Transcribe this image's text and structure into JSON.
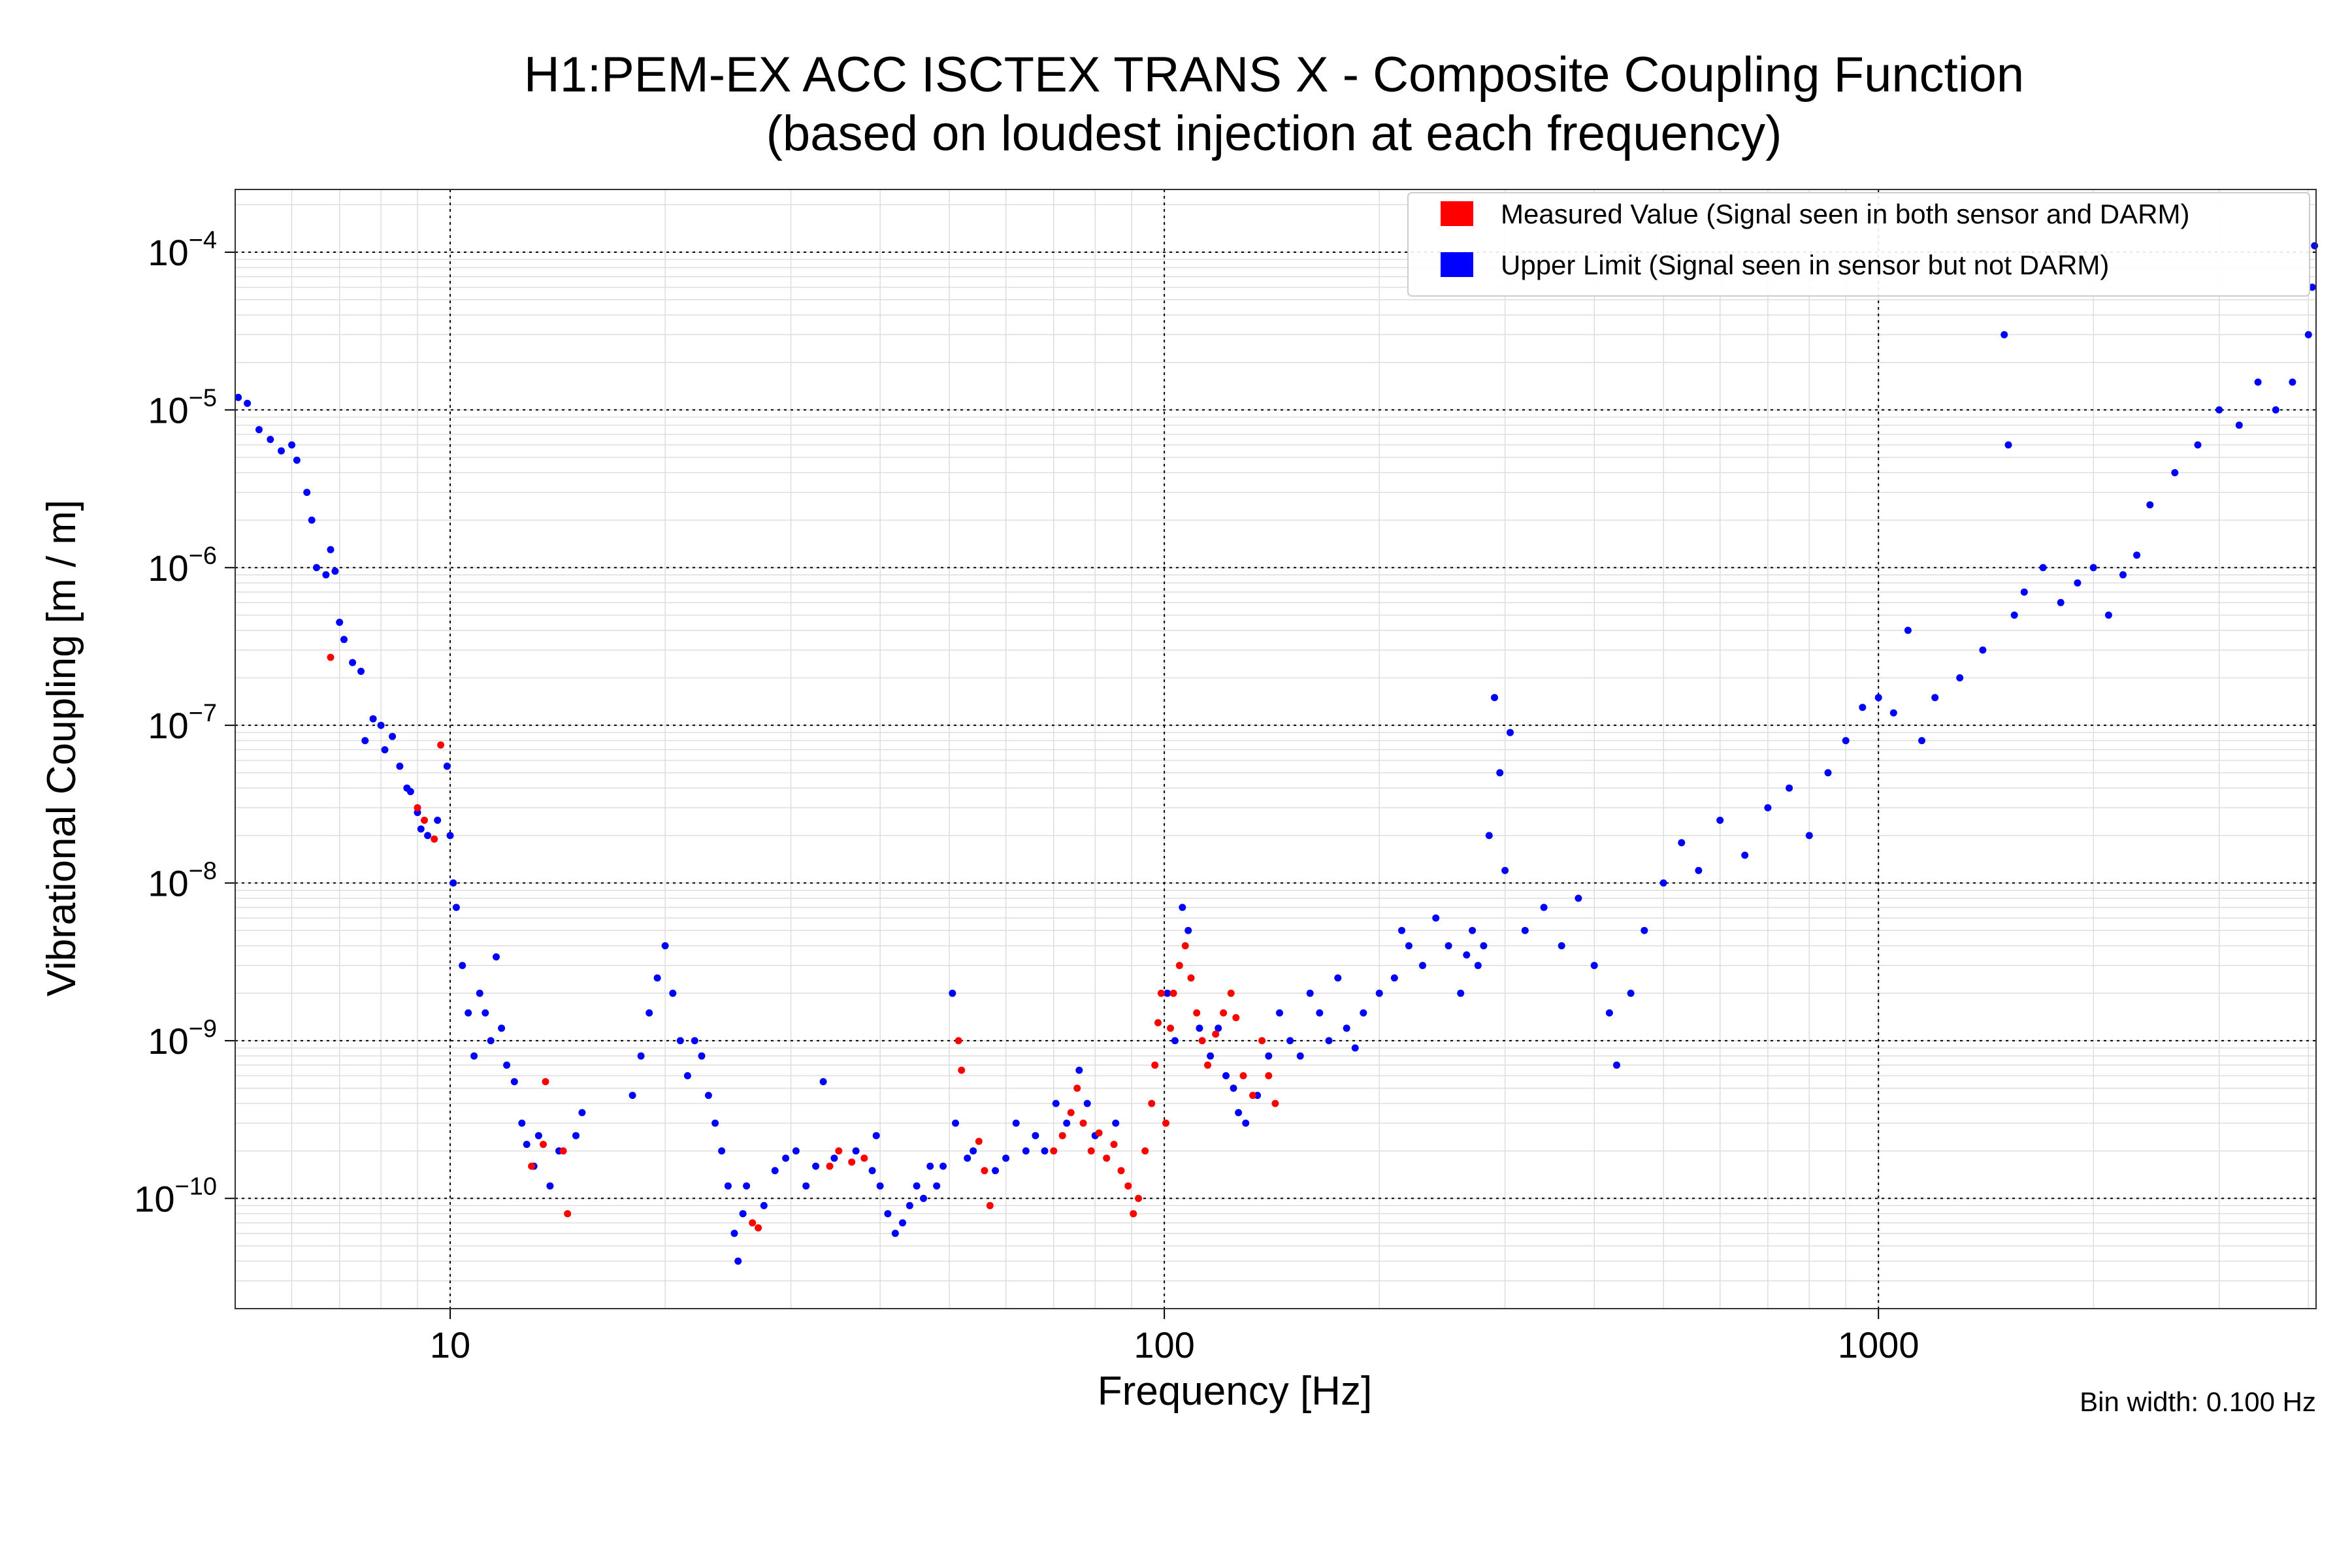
{
  "chart_data": {
    "type": "scatter",
    "title": [
      "H1:PEM-EX ACC ISCTEX TRANS X - Composite Coupling Function",
      "(based on loudest injection at each frequency)"
    ],
    "xlabel": "Frequency [Hz]",
    "ylabel": "Vibrational Coupling [m / m]",
    "xscale": "log",
    "yscale": "log",
    "xlim": [
      5,
      4100
    ],
    "ylim": [
      2e-11,
      0.00025
    ],
    "x_ticks": [
      {
        "value": 10,
        "label": "10"
      },
      {
        "value": 100,
        "label": "100"
      },
      {
        "value": 1000,
        "label": "1000"
      }
    ],
    "y_ticks": [
      {
        "value": 1e-10,
        "base": "10",
        "exp": "−10"
      },
      {
        "value": 1e-09,
        "base": "10",
        "exp": "−9"
      },
      {
        "value": 1e-08,
        "base": "10",
        "exp": "−8"
      },
      {
        "value": 1e-07,
        "base": "10",
        "exp": "−7"
      },
      {
        "value": 1e-06,
        "base": "10",
        "exp": "−6"
      },
      {
        "value": 1e-05,
        "base": "10",
        "exp": "−5"
      },
      {
        "value": 0.0001,
        "base": "10",
        "exp": "−4"
      }
    ],
    "grid": true,
    "legend_position": "top-right",
    "footnote": "Bin width: 0.100 Hz",
    "series": [
      {
        "name": "Measured Value (Signal seen in both sensor and DARM)",
        "color": "#ff0000",
        "points": [
          [
            6.8,
            2.7e-07
          ],
          [
            9.0,
            3e-08
          ],
          [
            9.2,
            2.5e-08
          ],
          [
            9.5,
            1.9e-08
          ],
          [
            9.7,
            7.5e-08
          ],
          [
            13.0,
            1.6e-10
          ],
          [
            13.5,
            2.2e-10
          ],
          [
            13.6,
            5.5e-10
          ],
          [
            14.4,
            2e-10
          ],
          [
            14.6,
            8e-11
          ],
          [
            26.5,
            7e-11
          ],
          [
            27.0,
            6.5e-11
          ],
          [
            34.0,
            1.6e-10
          ],
          [
            35.0,
            2e-10
          ],
          [
            36.5,
            1.7e-10
          ],
          [
            38.0,
            1.8e-10
          ],
          [
            51.5,
            1e-09
          ],
          [
            52.0,
            6.5e-10
          ],
          [
            55.0,
            2.3e-10
          ],
          [
            56.0,
            1.5e-10
          ],
          [
            57.0,
            9e-11
          ],
          [
            70.0,
            2e-10
          ],
          [
            72.0,
            2.5e-10
          ],
          [
            74.0,
            3.5e-10
          ],
          [
            75.5,
            5e-10
          ],
          [
            77.0,
            3e-10
          ],
          [
            79.0,
            2e-10
          ],
          [
            81.0,
            2.6e-10
          ],
          [
            83.0,
            1.8e-10
          ],
          [
            85.0,
            2.2e-10
          ],
          [
            87.0,
            1.5e-10
          ],
          [
            89.0,
            1.2e-10
          ],
          [
            90.5,
            8e-11
          ],
          [
            92.0,
            1e-10
          ],
          [
            94.0,
            2e-10
          ],
          [
            96.0,
            4e-10
          ],
          [
            97.0,
            7e-10
          ],
          [
            98.0,
            1.3e-09
          ],
          [
            99.0,
            2e-09
          ],
          [
            100.5,
            3e-10
          ],
          [
            102.0,
            1.2e-09
          ],
          [
            103.0,
            2e-09
          ],
          [
            105.0,
            3e-09
          ],
          [
            107.0,
            4e-09
          ],
          [
            109.0,
            2.5e-09
          ],
          [
            111.0,
            1.5e-09
          ],
          [
            113.0,
            1e-09
          ],
          [
            115.0,
            7e-10
          ],
          [
            118.0,
            1.1e-09
          ],
          [
            121.0,
            1.5e-09
          ],
          [
            124.0,
            2e-09
          ],
          [
            126.0,
            1.4e-09
          ],
          [
            129.0,
            6e-10
          ],
          [
            133.0,
            4.5e-10
          ],
          [
            137.0,
            1e-09
          ],
          [
            140.0,
            6e-10
          ],
          [
            143.0,
            4e-10
          ]
        ]
      },
      {
        "name": "Upper Limit (Signal seen in sensor but not DARM)",
        "color": "#0000ff",
        "points": [
          [
            5.05,
            1.2e-05
          ],
          [
            5.2,
            1.1e-05
          ],
          [
            5.4,
            7.5e-06
          ],
          [
            5.6,
            6.5e-06
          ],
          [
            5.8,
            5.5e-06
          ],
          [
            6.0,
            6e-06
          ],
          [
            6.1,
            4.8e-06
          ],
          [
            6.3,
            3e-06
          ],
          [
            6.4,
            2e-06
          ],
          [
            6.5,
            1e-06
          ],
          [
            6.7,
            9e-07
          ],
          [
            6.8,
            1.3e-06
          ],
          [
            6.9,
            9.5e-07
          ],
          [
            7.0,
            4.5e-07
          ],
          [
            7.1,
            3.5e-07
          ],
          [
            7.3,
            2.5e-07
          ],
          [
            7.5,
            2.2e-07
          ],
          [
            7.6,
            8e-08
          ],
          [
            7.8,
            1.1e-07
          ],
          [
            8.0,
            1e-07
          ],
          [
            8.1,
            7e-08
          ],
          [
            8.3,
            8.5e-08
          ],
          [
            8.5,
            5.5e-08
          ],
          [
            8.7,
            4e-08
          ],
          [
            8.8,
            3.8e-08
          ],
          [
            9.0,
            2.8e-08
          ],
          [
            9.1,
            2.2e-08
          ],
          [
            9.3,
            2e-08
          ],
          [
            9.6,
            2.5e-08
          ],
          [
            9.9,
            5.5e-08
          ],
          [
            10.0,
            2e-08
          ],
          [
            10.1,
            1e-08
          ],
          [
            10.2,
            7e-09
          ],
          [
            10.4,
            3e-09
          ],
          [
            10.6,
            1.5e-09
          ],
          [
            10.8,
            8e-10
          ],
          [
            11.0,
            2e-09
          ],
          [
            11.2,
            1.5e-09
          ],
          [
            11.4,
            1e-09
          ],
          [
            11.6,
            3.4e-09
          ],
          [
            11.8,
            1.2e-09
          ],
          [
            12.0,
            7e-10
          ],
          [
            12.3,
            5.5e-10
          ],
          [
            12.6,
            3e-10
          ],
          [
            12.8,
            2.2e-10
          ],
          [
            13.1,
            1.6e-10
          ],
          [
            13.3,
            2.5e-10
          ],
          [
            13.8,
            1.2e-10
          ],
          [
            14.2,
            2e-10
          ],
          [
            15.0,
            2.5e-10
          ],
          [
            15.3,
            3.5e-10
          ],
          [
            18.0,
            4.5e-10
          ],
          [
            18.5,
            8e-10
          ],
          [
            19.0,
            1.5e-09
          ],
          [
            19.5,
            2.5e-09
          ],
          [
            20.0,
            4e-09
          ],
          [
            20.5,
            2e-09
          ],
          [
            21.0,
            1e-09
          ],
          [
            21.5,
            6e-10
          ],
          [
            22.0,
            1e-09
          ],
          [
            22.5,
            8e-10
          ],
          [
            23.0,
            4.5e-10
          ],
          [
            23.5,
            3e-10
          ],
          [
            24.0,
            2e-10
          ],
          [
            24.5,
            1.2e-10
          ],
          [
            25.0,
            6e-11
          ],
          [
            25.3,
            4e-11
          ],
          [
            25.7,
            8e-11
          ],
          [
            26.0,
            1.2e-10
          ],
          [
            27.5,
            9e-11
          ],
          [
            28.5,
            1.5e-10
          ],
          [
            29.5,
            1.8e-10
          ],
          [
            30.5,
            2e-10
          ],
          [
            31.5,
            1.2e-10
          ],
          [
            32.5,
            1.6e-10
          ],
          [
            33.3,
            5.5e-10
          ],
          [
            34.5,
            1.8e-10
          ],
          [
            37.0,
            2e-10
          ],
          [
            39.0,
            1.5e-10
          ],
          [
            39.5,
            2.5e-10
          ],
          [
            40.0,
            1.2e-10
          ],
          [
            41.0,
            8e-11
          ],
          [
            42.0,
            6e-11
          ],
          [
            43.0,
            7e-11
          ],
          [
            44.0,
            9e-11
          ],
          [
            45.0,
            1.2e-10
          ],
          [
            46.0,
            1e-10
          ],
          [
            47.0,
            1.6e-10
          ],
          [
            48.0,
            1.2e-10
          ],
          [
            49.0,
            1.6e-10
          ],
          [
            50.5,
            2e-09
          ],
          [
            51.0,
            3e-10
          ],
          [
            53.0,
            1.8e-10
          ],
          [
            54.0,
            2e-10
          ],
          [
            58.0,
            1.5e-10
          ],
          [
            60.0,
            1.8e-10
          ],
          [
            62.0,
            3e-10
          ],
          [
            64.0,
            2e-10
          ],
          [
            66.0,
            2.5e-10
          ],
          [
            68.0,
            2e-10
          ],
          [
            70.5,
            4e-10
          ],
          [
            73.0,
            3e-10
          ],
          [
            76.0,
            6.5e-10
          ],
          [
            78.0,
            4e-10
          ],
          [
            80.0,
            2.5e-10
          ],
          [
            85.5,
            3e-10
          ],
          [
            101.0,
            2e-09
          ],
          [
            103.5,
            1e-09
          ],
          [
            106.0,
            7e-09
          ],
          [
            108.0,
            5e-09
          ],
          [
            112.0,
            1.2e-09
          ],
          [
            116.0,
            8e-10
          ],
          [
            119.0,
            1.2e-09
          ],
          [
            122.0,
            6e-10
          ],
          [
            125.0,
            5e-10
          ],
          [
            127.0,
            3.5e-10
          ],
          [
            130.0,
            3e-10
          ],
          [
            135.0,
            4.5e-10
          ],
          [
            140.0,
            8e-10
          ],
          [
            145.0,
            1.5e-09
          ],
          [
            150.0,
            1e-09
          ],
          [
            155.0,
            8e-10
          ],
          [
            160.0,
            2e-09
          ],
          [
            165.0,
            1.5e-09
          ],
          [
            170.0,
            1e-09
          ],
          [
            175.0,
            2.5e-09
          ],
          [
            180.0,
            1.2e-09
          ],
          [
            185.0,
            9e-10
          ],
          [
            190.0,
            1.5e-09
          ],
          [
            200.0,
            2e-09
          ],
          [
            210.0,
            2.5e-09
          ],
          [
            215.0,
            5e-09
          ],
          [
            220.0,
            4e-09
          ],
          [
            230.0,
            3e-09
          ],
          [
            240.0,
            6e-09
          ],
          [
            250.0,
            4e-09
          ],
          [
            260.0,
            2e-09
          ],
          [
            265.0,
            3.5e-09
          ],
          [
            270.0,
            5e-09
          ],
          [
            275.0,
            3e-09
          ],
          [
            280.0,
            4e-09
          ],
          [
            285.0,
            2e-08
          ],
          [
            290.0,
            1.5e-07
          ],
          [
            295.0,
            5e-08
          ],
          [
            300.0,
            1.2e-08
          ],
          [
            305.0,
            9e-08
          ],
          [
            320.0,
            5e-09
          ],
          [
            340.0,
            7e-09
          ],
          [
            360.0,
            4e-09
          ],
          [
            380.0,
            8e-09
          ],
          [
            400.0,
            3e-09
          ],
          [
            420.0,
            1.5e-09
          ],
          [
            430.0,
            7e-10
          ],
          [
            450.0,
            2e-09
          ],
          [
            470.0,
            5e-09
          ],
          [
            500.0,
            1e-08
          ],
          [
            530.0,
            1.8e-08
          ],
          [
            560.0,
            1.2e-08
          ],
          [
            600.0,
            2.5e-08
          ],
          [
            650.0,
            1.5e-08
          ],
          [
            700.0,
            3e-08
          ],
          [
            750.0,
            4e-08
          ],
          [
            800.0,
            2e-08
          ],
          [
            850.0,
            5e-08
          ],
          [
            900.0,
            8e-08
          ],
          [
            950.0,
            1.3e-07
          ],
          [
            1000.0,
            1.5e-07
          ],
          [
            1050.0,
            1.2e-07
          ],
          [
            1100.0,
            4e-07
          ],
          [
            1150.0,
            8e-08
          ],
          [
            1200.0,
            1.5e-07
          ],
          [
            1300.0,
            2e-07
          ],
          [
            1400.0,
            3e-07
          ],
          [
            1500.0,
            3e-05
          ],
          [
            1520.0,
            6e-06
          ],
          [
            1550.0,
            5e-07
          ],
          [
            1600.0,
            7e-07
          ],
          [
            1700.0,
            1e-06
          ],
          [
            1800.0,
            6e-07
          ],
          [
            1900.0,
            8e-07
          ],
          [
            2000.0,
            1e-06
          ],
          [
            2100.0,
            5e-07
          ],
          [
            2200.0,
            9e-07
          ],
          [
            2300.0,
            1.2e-06
          ],
          [
            2400.0,
            2.5e-06
          ],
          [
            2600.0,
            4e-06
          ],
          [
            2800.0,
            6e-06
          ],
          [
            3000.0,
            1e-05
          ],
          [
            3200.0,
            8e-06
          ],
          [
            3400.0,
            1.5e-05
          ],
          [
            3600.0,
            1e-05
          ],
          [
            3800.0,
            1.5e-05
          ],
          [
            4000.0,
            3e-05
          ],
          [
            4050.0,
            6e-05
          ],
          [
            4080.0,
            0.00011
          ]
        ]
      }
    ]
  }
}
